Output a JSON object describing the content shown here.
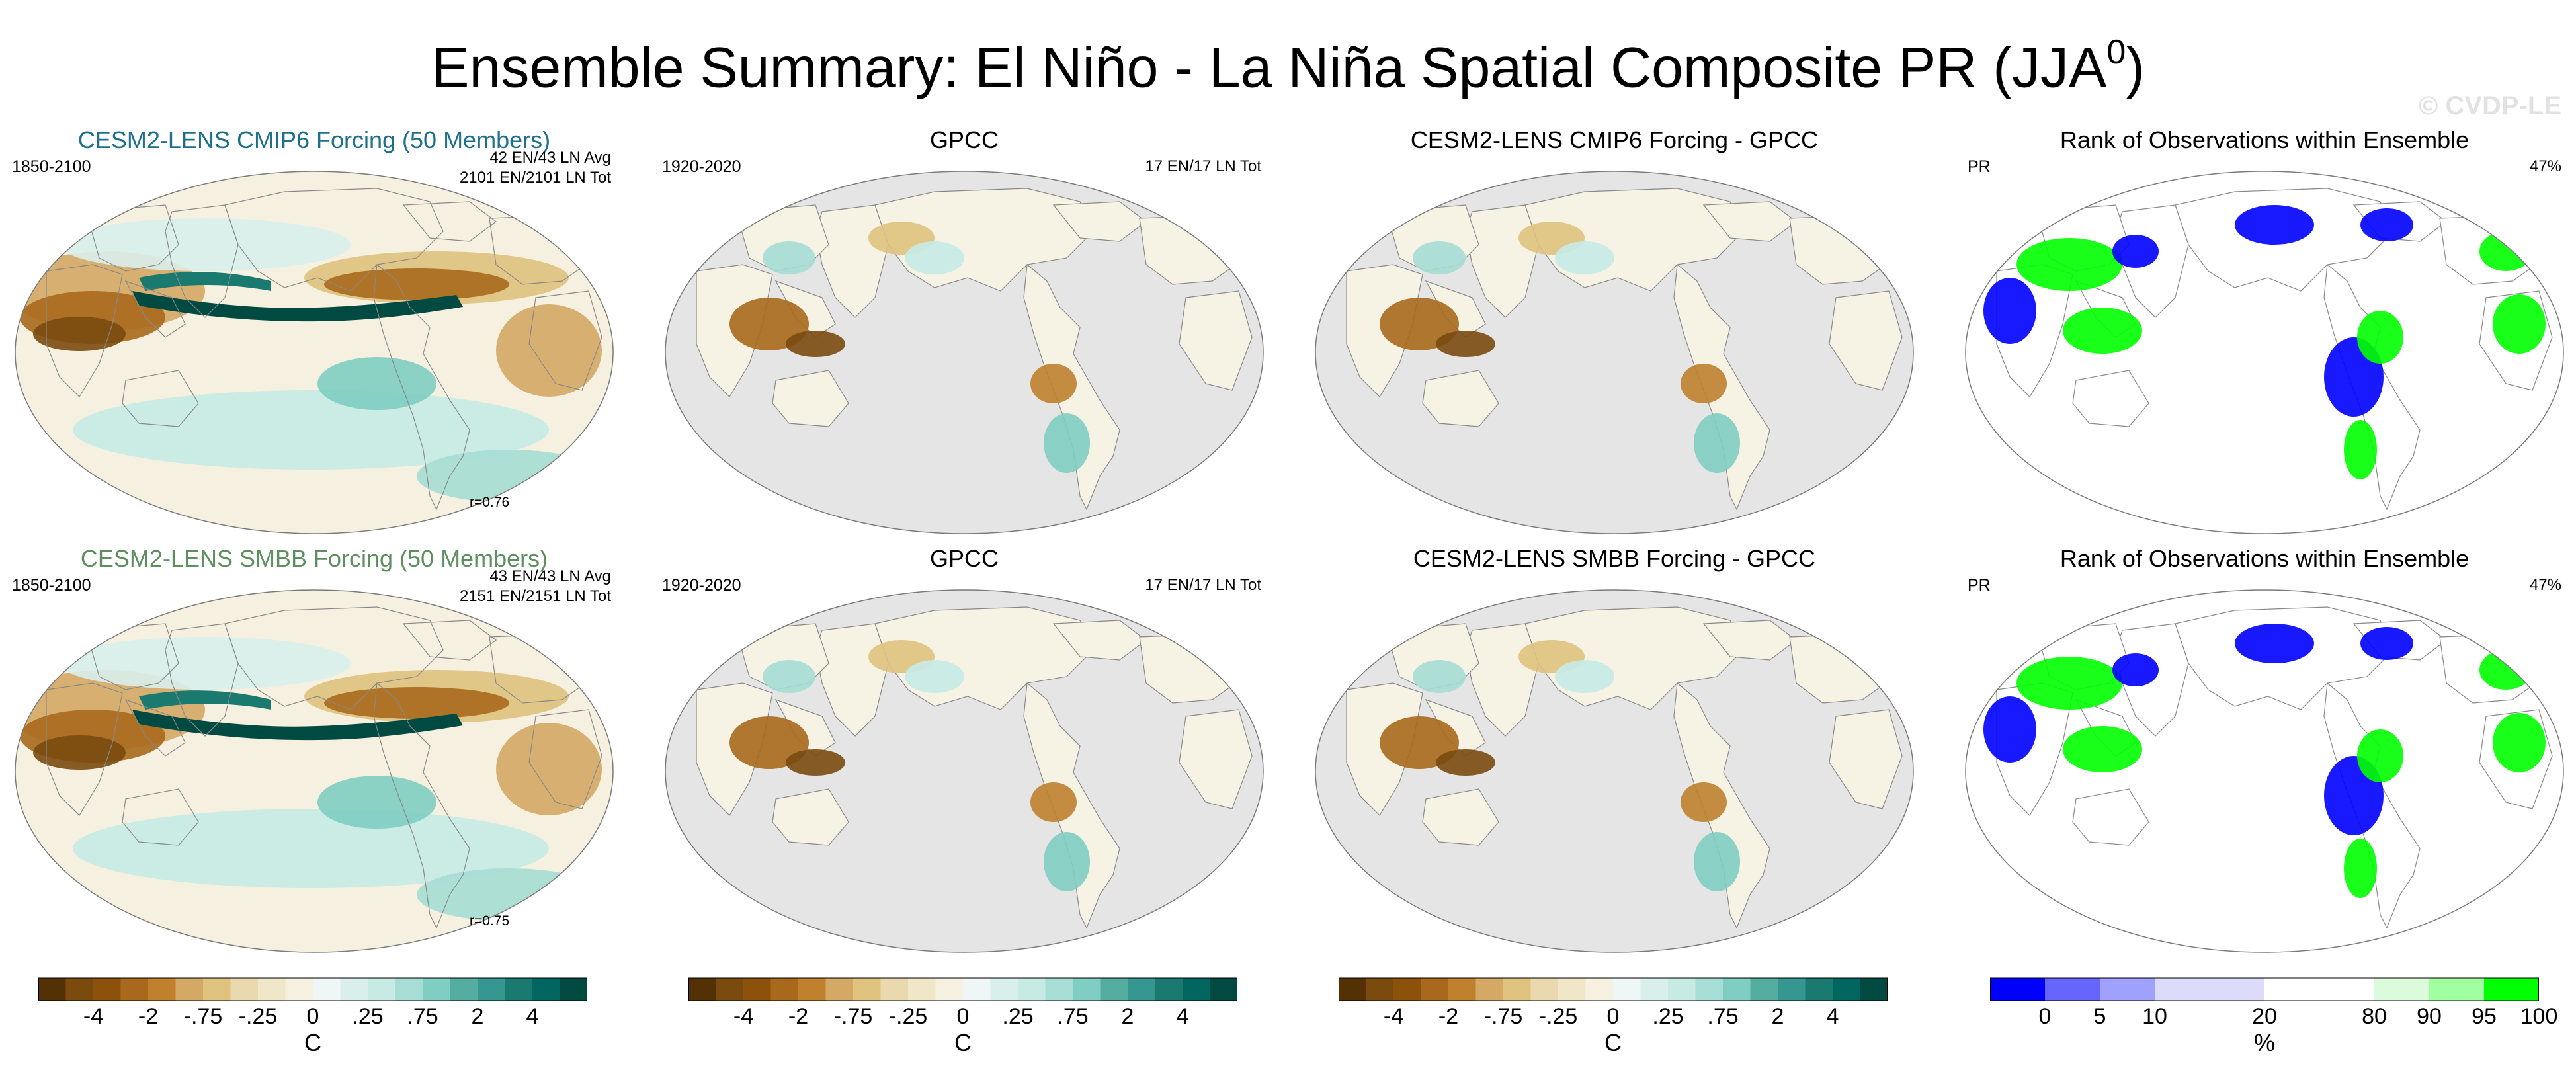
{
  "header": {
    "title": "Ensemble Summary: El Niño - La Niña Spatial Composite PR (JJA",
    "title_sup": "0",
    "title_close": ")",
    "watermark": "© CVDP-LE"
  },
  "panels": {
    "r1c1": {
      "title": "CESM2-LENS CMIP6 Forcing (50 Members)",
      "title_color": "#1d6f8c",
      "left": "1850-2100",
      "right1": "42 EN/43 LN Avg",
      "right2": "2101 EN/2101 LN Tot",
      "corr": "r=0.76"
    },
    "r1c2": {
      "title": "GPCC",
      "left": "1920-2020",
      "right": "17 EN/17 LN Tot"
    },
    "r1c3": {
      "title": "CESM2-LENS CMIP6 Forcing - GPCC"
    },
    "r1c4": {
      "title": "Rank of Observations within Ensemble",
      "left": "PR",
      "right": "47%"
    },
    "r2c1": {
      "title": "CESM2-LENS SMBB Forcing (50 Members)",
      "title_color": "#5d8f5f",
      "left": "1850-2100",
      "right1": "43 EN/43 LN Avg",
      "right2": "2151 EN/2151 LN Tot",
      "corr": "r=0.75"
    },
    "r2c2": {
      "title": "GPCC",
      "left": "1920-2020",
      "right": "17 EN/17 LN Tot"
    },
    "r2c3": {
      "title": "CESM2-LENS SMBB Forcing - GPCC"
    },
    "r2c4": {
      "title": "Rank of Observations within Ensemble",
      "left": "PR",
      "right": "47%"
    }
  },
  "colorbars": {
    "brbg": {
      "colors": [
        "#543005",
        "#7a4a0f",
        "#8c510a",
        "#a8691c",
        "#bf812d",
        "#d4a865",
        "#dfc27d",
        "#ead8ae",
        "#f0e6c8",
        "#f6f0e0",
        "#eef7f6",
        "#d9efec",
        "#c7eae5",
        "#a6ddd4",
        "#80cdc1",
        "#55ad9f",
        "#35978f",
        "#1b7a70",
        "#01665e",
        "#014a42"
      ],
      "ticks": [
        "-4",
        "-2",
        "-.75",
        "-.25",
        "0",
        ".25",
        ".75",
        "2",
        "4"
      ],
      "unit": "C"
    },
    "rank": {
      "colors": [
        "#0000ff",
        "#6666ff",
        "#a0a0ff",
        "#dcdcfa",
        "#dcdcfa",
        "#ffffff",
        "#ffffff",
        "#dcfadc",
        "#a0ffa0",
        "#00ff00"
      ],
      "ticks": [
        "0",
        "5",
        "10",
        "20",
        "80",
        "90",
        "95",
        "100"
      ],
      "unit": "%"
    }
  },
  "legend_colors": {
    "land": "#e5e5e5",
    "ocean": "#ffffff",
    "coast": "#888888",
    "rank_low": "#0000ff",
    "rank_high": "#00ff00"
  }
}
